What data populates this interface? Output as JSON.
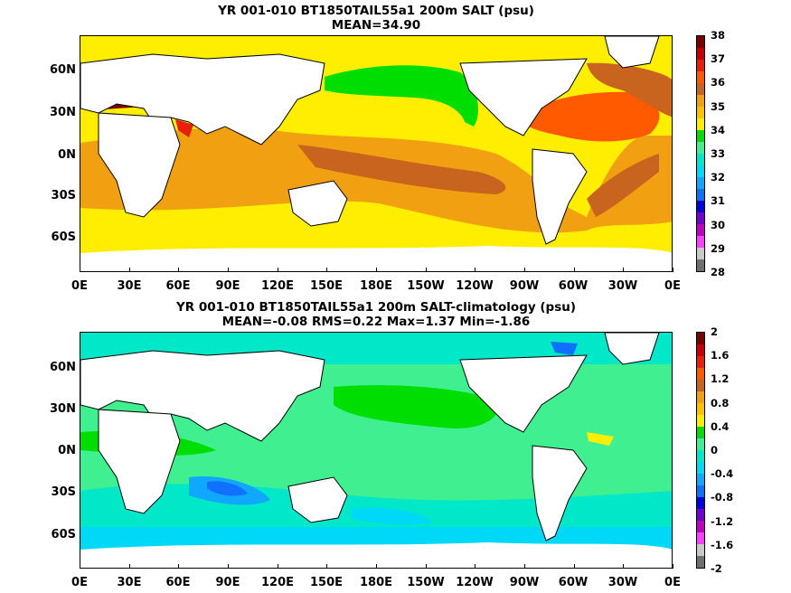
{
  "panels": [
    {
      "title_line1": "YR 001-010 BT1850TAIL55a1 200m SALT (psu)",
      "title_line2": "MEAN=34.90",
      "colorbar": {
        "labels": [
          "38",
          "37",
          "36",
          "35",
          "34",
          "33",
          "32",
          "31",
          "30",
          "29",
          "28"
        ],
        "colors": [
          "#7a0000",
          "#c40000",
          "#e8200a",
          "#ff5a00",
          "#c8641e",
          "#f0a010",
          "#ffc000",
          "#ffee00",
          "#00dd00",
          "#40f090",
          "#00e8c8",
          "#00d8f8",
          "#10a8ff",
          "#1070ff",
          "#0000e0",
          "#7000d0",
          "#c000c0",
          "#ff40ff",
          "#c8c8c8",
          "#707070"
        ]
      }
    },
    {
      "title_line1": "YR 001-010 BT1850TAIL55a1 200m SALT-climatology (psu)",
      "title_line2": "MEAN=-0.08   RMS=0.22   Max=1.37   Min=-1.86",
      "colorbar": {
        "labels": [
          "2",
          "1.6",
          "1.2",
          "0.8",
          "0.4",
          "0",
          "-0.4",
          "-0.8",
          "-1.2",
          "-1.6",
          "-2"
        ],
        "colors": [
          "#7a0000",
          "#c40000",
          "#e8200a",
          "#ff5a00",
          "#c8641e",
          "#f0a010",
          "#ffc000",
          "#ffee00",
          "#00dd00",
          "#40f090",
          "#00e8c8",
          "#00d8f8",
          "#10a8ff",
          "#1070ff",
          "#0000e0",
          "#7000d0",
          "#c000c0",
          "#ff40ff",
          "#c8c8c8",
          "#707070"
        ]
      }
    }
  ],
  "lat_labels": [
    "60N",
    "30N",
    "0N",
    "30S",
    "60S"
  ],
  "lon_labels": [
    "0E",
    "30E",
    "60E",
    "90E",
    "120E",
    "150E",
    "180E",
    "150W",
    "120W",
    "90W",
    "60W",
    "30W",
    "0E"
  ]
}
